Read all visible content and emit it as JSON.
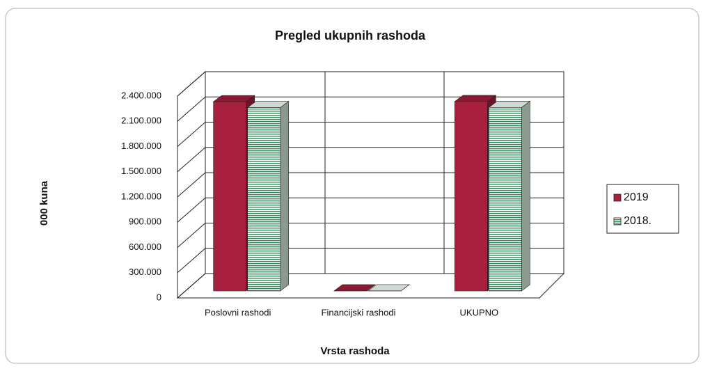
{
  "chart_data": {
    "type": "bar3d",
    "title": "Pregled ukupnih rashoda",
    "y_label": "000 kuna",
    "x_label": "Vrsta rashoda",
    "categories": [
      "Poslovni rashodi",
      "Financijski rashodi",
      "UKUPNO"
    ],
    "series": [
      {
        "name": "2019",
        "color": "#a8203d",
        "values": [
          2250000,
          1000,
          2252000
        ]
      },
      {
        "name": "2018.",
        "color": "#2e8b57",
        "values": [
          2180000,
          1000,
          2182000
        ]
      }
    ],
    "ylim": [
      0,
      2400000
    ],
    "yticks": [
      0,
      {
        "value": 300000,
        "label": "300.000"
      },
      {
        "value": 600000,
        "label": "600.000"
      },
      {
        "value": 900000,
        "label": "900.000"
      },
      {
        "value": 1200000,
        "label": "1.200.000"
      },
      {
        "value": 1500000,
        "label": "1.500.000"
      },
      {
        "value": 1800000,
        "label": "1.800.000"
      },
      {
        "value": 2100000,
        "label": "2.100.000"
      },
      {
        "value": 2400000,
        "label": "2.400.000"
      }
    ],
    "grid": true,
    "legend": "right"
  }
}
